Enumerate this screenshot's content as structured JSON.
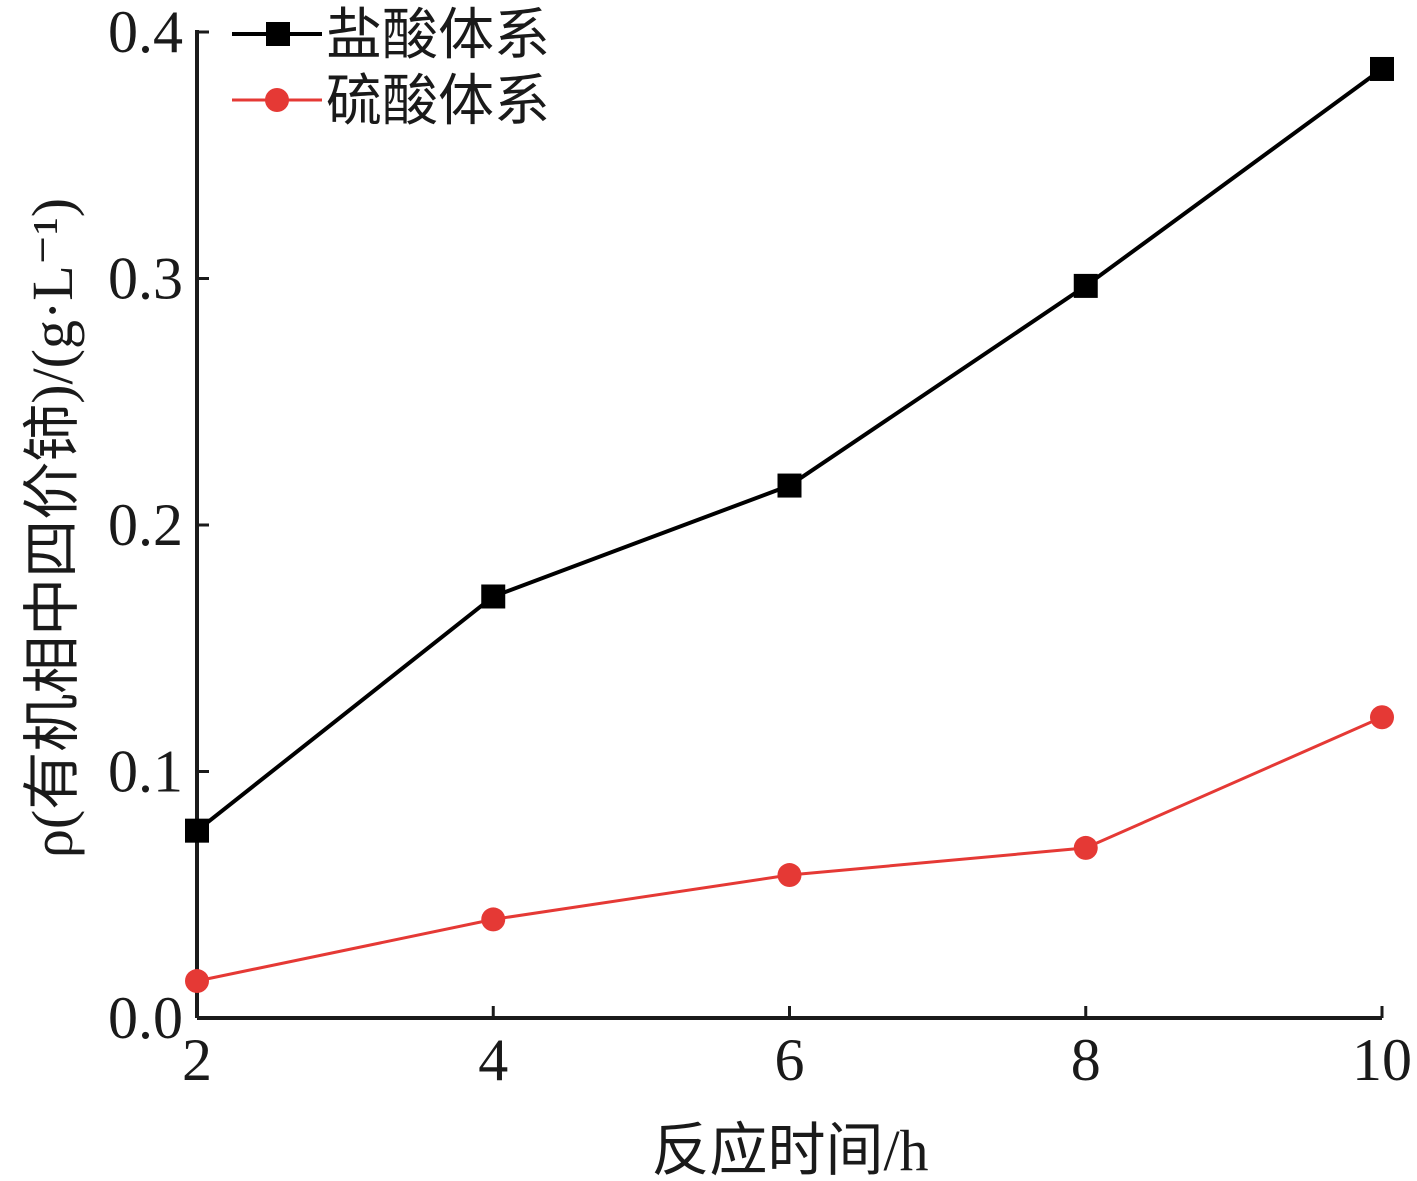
{
  "chart_data": {
    "type": "line",
    "title": "",
    "xlabel": "反应时间/h",
    "ylabel": "ρ(有机相中四价铈)/(g·L⁻¹)",
    "x": [
      2,
      4,
      6,
      8,
      10
    ],
    "xticks": [
      "2",
      "4",
      "6",
      "8",
      "10"
    ],
    "xlim": [
      2,
      10
    ],
    "yticks": [
      "0.0",
      "0.1",
      "0.2",
      "0.3",
      "0.4"
    ],
    "ylim": [
      0.0,
      0.4
    ],
    "grid": false,
    "legend_position": "top-left",
    "series": [
      {
        "name": "盐酸体系",
        "color": "#000000",
        "marker": "square",
        "values": [
          0.076,
          0.171,
          0.216,
          0.297,
          0.385
        ]
      },
      {
        "name": "硫酸体系",
        "color": "#e53935",
        "marker": "circle",
        "values": [
          0.015,
          0.04,
          0.058,
          0.069,
          0.122
        ]
      }
    ]
  }
}
